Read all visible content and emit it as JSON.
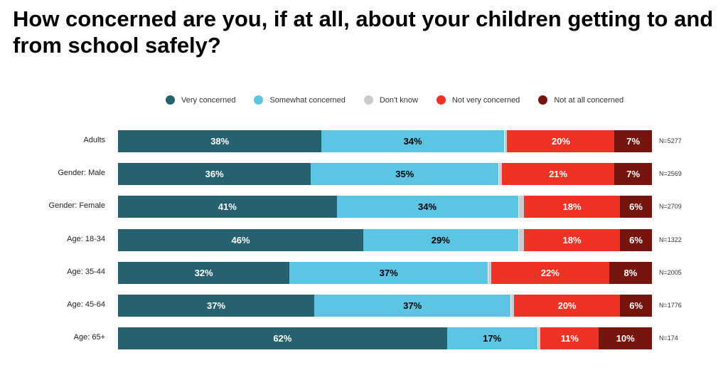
{
  "chart_data": {
    "type": "bar",
    "orientation": "horizontal-stacked-100",
    "title": "How concerned are you, if at all, about your children getting to and from school safely?",
    "legend_position": "top",
    "categories": [
      "Adults",
      "Gender: Male",
      "Gender: Female",
      "Age: 18-34",
      "Age: 35-44",
      "Age: 45-64",
      "Age: 65+"
    ],
    "n_labels": [
      "N=5277",
      "N=2569",
      "N=2709",
      "N=1322",
      "N=2005",
      "N=1776",
      "N=174"
    ],
    "series": [
      {
        "name": "Very concerned",
        "color": "#27606e",
        "text_color": "#ffffff",
        "labeled": true,
        "values": [
          38,
          36,
          41,
          46,
          32,
          37,
          62
        ]
      },
      {
        "name": "Somewhat concerned",
        "color": "#5bc5e3",
        "text_color": "#000000",
        "labeled": true,
        "values": [
          34,
          35,
          34,
          29,
          37,
          37,
          17
        ]
      },
      {
        "name": "Don't know",
        "color": "#cccccc",
        "text_color": "#000000",
        "labeled": false,
        "values": [
          0.5,
          0.5,
          1,
          1,
          0.5,
          0.5,
          0.5
        ]
      },
      {
        "name": "Not very concerned",
        "color": "#ee3224",
        "text_color": "#ffffff",
        "labeled": true,
        "values": [
          20,
          21,
          18,
          18,
          22,
          20,
          11
        ]
      },
      {
        "name": "Not at all concerned",
        "color": "#76140e",
        "text_color": "#ffffff",
        "labeled": true,
        "values": [
          7,
          7,
          6,
          6,
          8,
          6,
          10
        ]
      }
    ],
    "value_suffix": "%"
  }
}
